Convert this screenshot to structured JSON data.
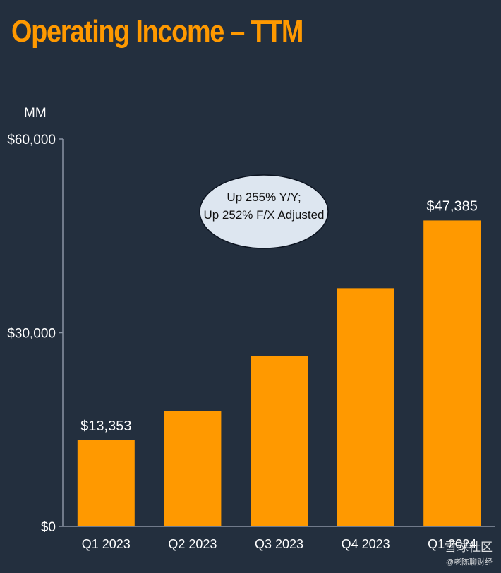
{
  "chart_data": {
    "type": "bar",
    "title": "Operating Income – TTM",
    "ylabel": "MM",
    "xlabel": "",
    "categories": [
      "Q1 2023",
      "Q2 2023",
      "Q3 2023",
      "Q4 2023",
      "Q1 2024"
    ],
    "values": [
      13353,
      17900,
      26400,
      36900,
      47385
    ],
    "data_labels": [
      "$13,353",
      "",
      "",
      "",
      "$47,385"
    ],
    "ylim": [
      0,
      60000
    ],
    "yticks": [
      0,
      30000,
      60000
    ],
    "ytick_labels": [
      "$0",
      "$30,000",
      "$60,000"
    ],
    "grid": false,
    "legend": "none",
    "bar_color": "#ff9900",
    "annotation": {
      "line1": "Up 255% Y/Y;",
      "line2": "Up 252% F/X Adjusted"
    }
  },
  "colors": {
    "background": "#232f3e",
    "accent": "#ff9900",
    "axis": "#8a94a3",
    "text": "#ffffff",
    "bubble": "#dde6f0"
  },
  "watermark": {
    "brand": "雪球社区",
    "handle": "@老陈聊财经"
  }
}
